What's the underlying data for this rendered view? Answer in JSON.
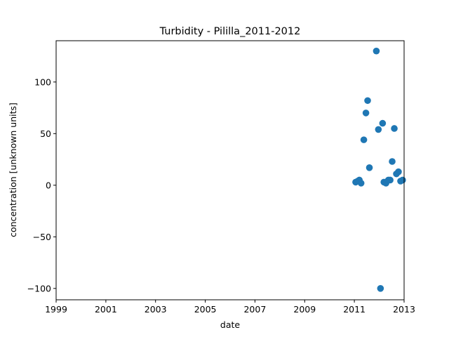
{
  "chart_data": {
    "type": "scatter",
    "title": "Turbidity - Pililla_2011-2012",
    "xlabel": "date",
    "ylabel": "concentration [unknown units]",
    "xlim": [
      "1999-01-01",
      "2013-01-01"
    ],
    "ylim": [
      -111,
      140
    ],
    "x_ticks": [
      "1999",
      "2001",
      "2003",
      "2005",
      "2007",
      "2009",
      "2011",
      "2013"
    ],
    "y_ticks": [
      -100,
      -50,
      0,
      50,
      100
    ],
    "y_tick_labels": [
      "−100",
      "−50",
      "0",
      "50",
      "100"
    ],
    "grid": false,
    "legend": "none",
    "marker_color": "#1f77b4",
    "series": [
      {
        "x": [
          "2011-01-20",
          "2011-02-20",
          "2011-03-15",
          "2011-04-10",
          "2011-05-20",
          "2011-06-20",
          "2011-07-15",
          "2011-08-10",
          "2011-11-20",
          "2011-12-20",
          "2012-01-20",
          "2012-02-20",
          "2012-03-10",
          "2012-04-10",
          "2012-05-15",
          "2012-06-10",
          "2012-07-10",
          "2012-08-10",
          "2012-09-10",
          "2012-10-10",
          "2012-11-10",
          "2012-12-10"
        ],
        "y": [
          3,
          4,
          5,
          2,
          44,
          70,
          82,
          17,
          130,
          54,
          -100,
          60,
          3,
          2,
          5,
          5,
          23,
          55,
          11,
          13,
          4,
          5
        ]
      }
    ]
  }
}
